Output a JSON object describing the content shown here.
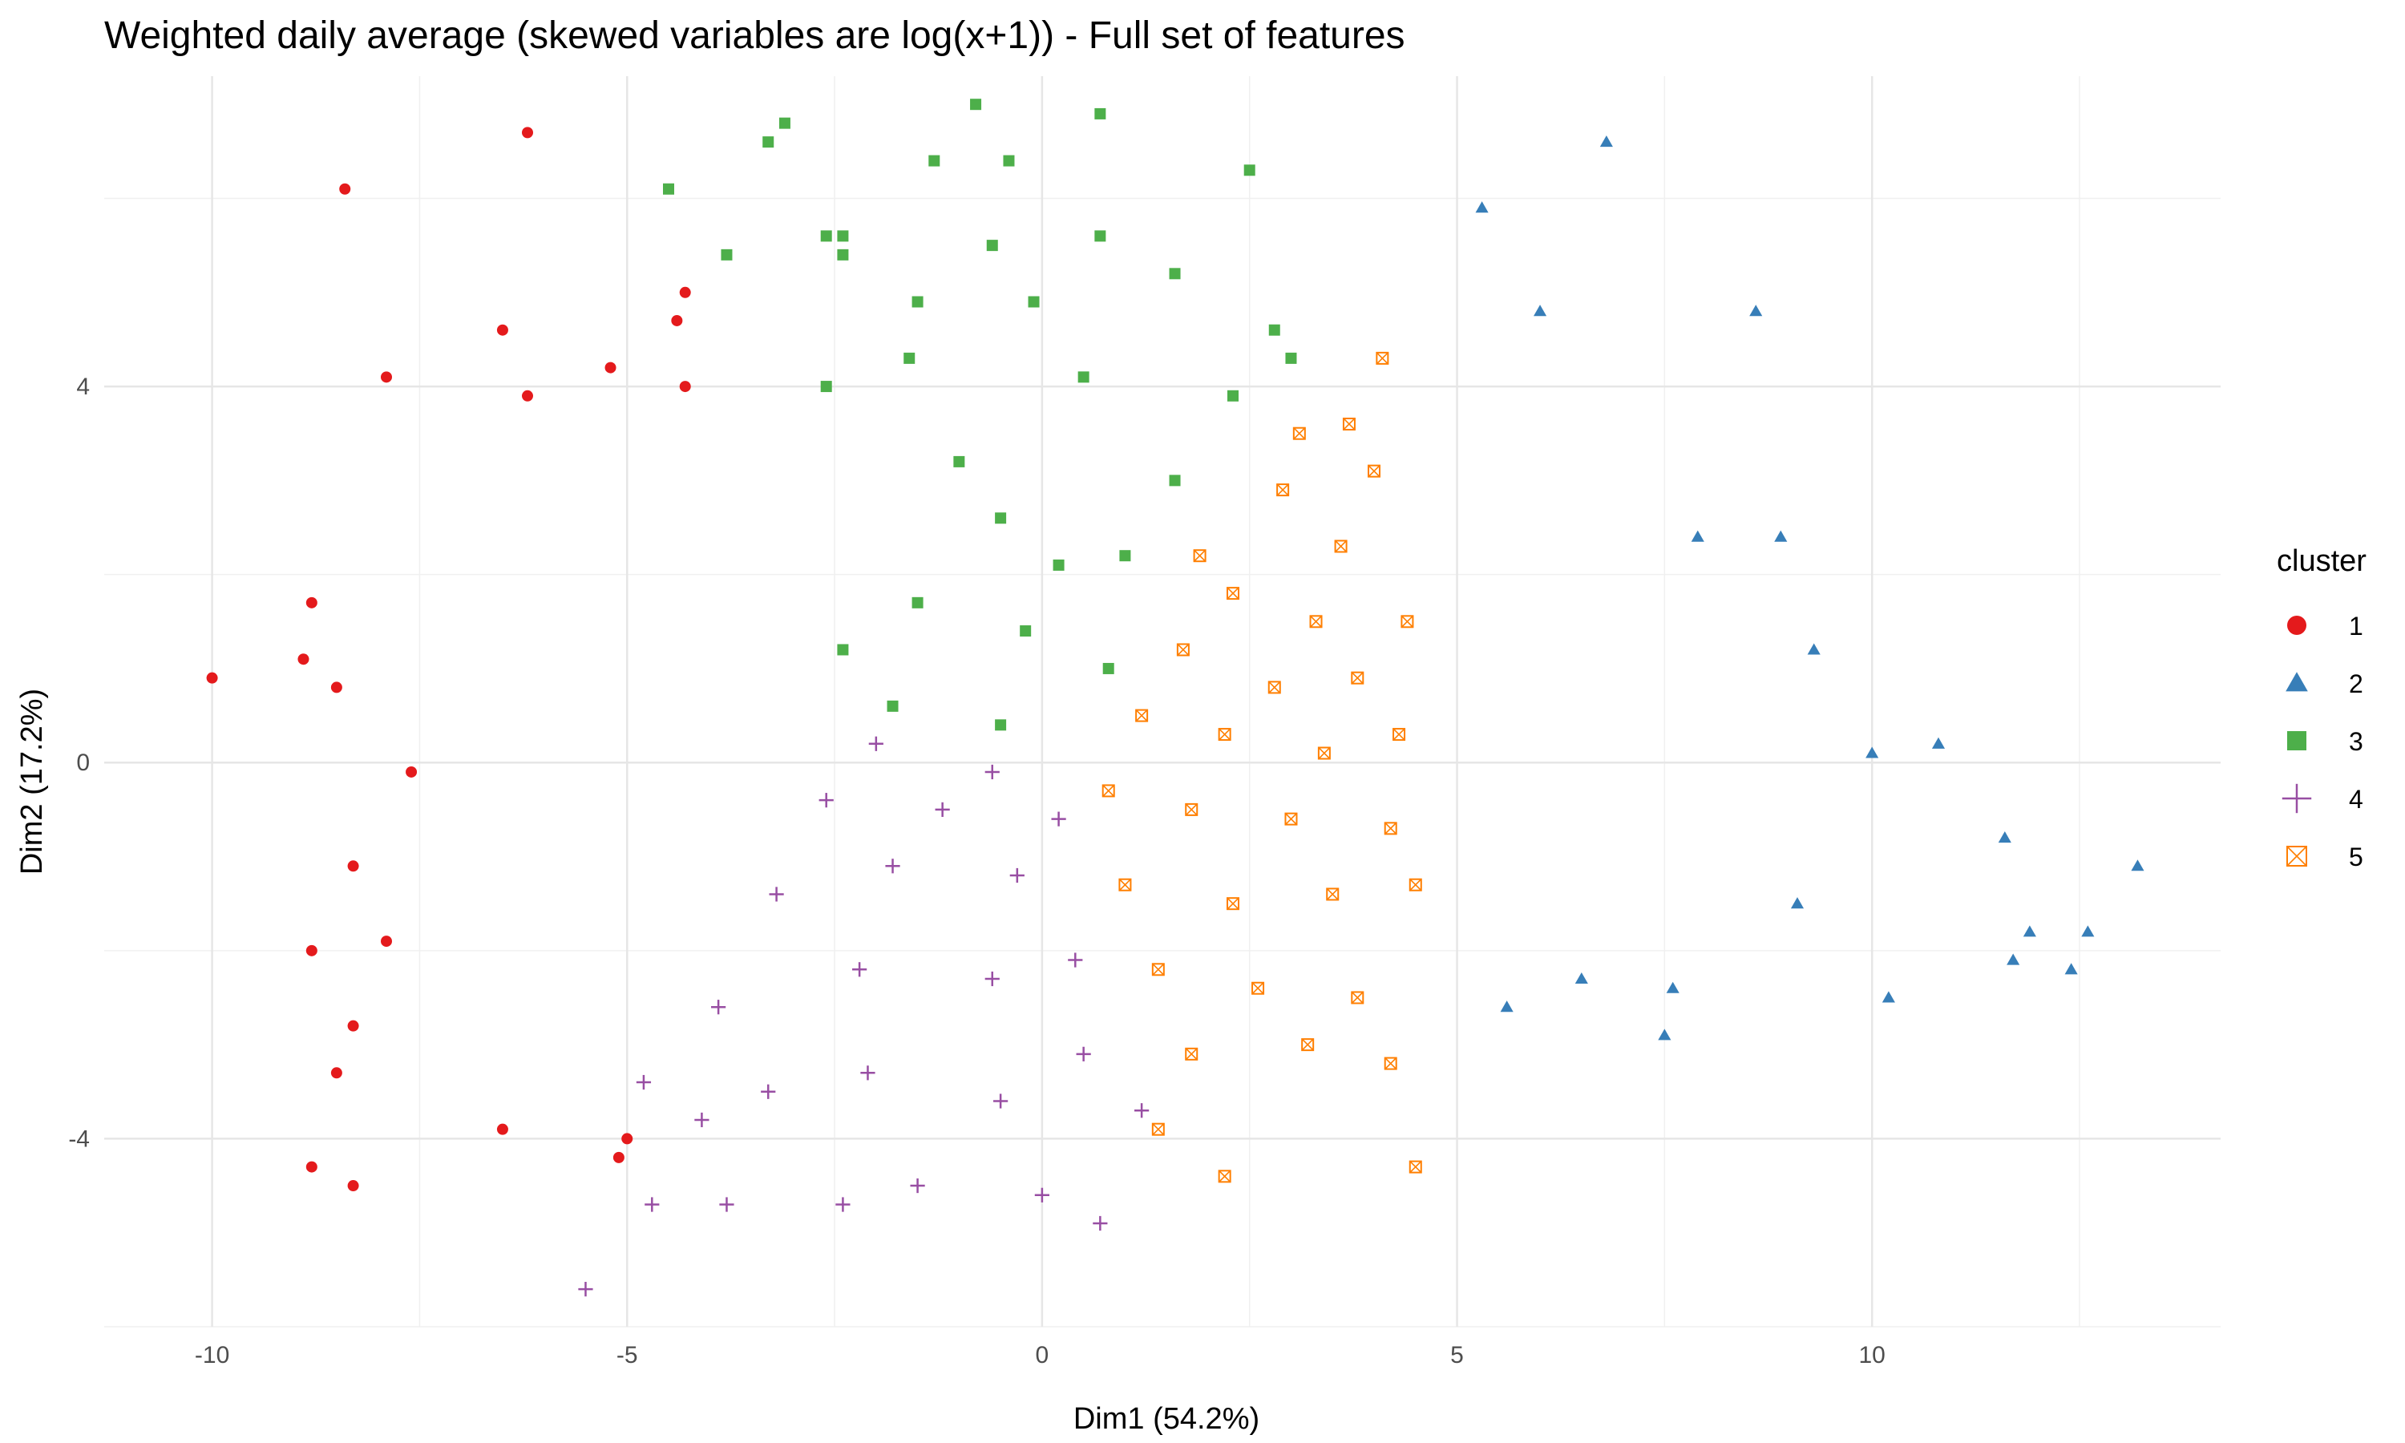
{
  "chart_data": {
    "type": "scatter",
    "title": "Weighted daily average (skewed variables are log(x+1)) - Full set of features",
    "xlabel": "Dim1 (54.2%)",
    "ylabel": "Dim2 (17.2%)",
    "xlim": [
      -11.3,
      14.2
    ],
    "ylim": [
      -6.0,
      7.3
    ],
    "x_ticks": [
      -10,
      -5,
      0,
      5,
      10
    ],
    "x_tick_labels": [
      "-10",
      "-5",
      "0",
      "5",
      "10"
    ],
    "y_ticks": [
      -4,
      0,
      4
    ],
    "y_tick_labels": [
      "-4",
      "0",
      "4"
    ],
    "grid": true,
    "legend": {
      "title": "cluster",
      "placement": "right"
    },
    "colors": {
      "1": "#E41A1C",
      "2": "#377EB8",
      "3": "#4DAF4A",
      "4": "#984EA3",
      "5": "#FF7F00"
    },
    "series": [
      {
        "name": "1",
        "shape": "circle",
        "color": "#E41A1C",
        "points": [
          [
            -10.0,
            0.9
          ],
          [
            -8.4,
            6.1
          ],
          [
            -8.8,
            1.7
          ],
          [
            -8.9,
            1.1
          ],
          [
            -8.5,
            0.8
          ],
          [
            -8.3,
            -1.1
          ],
          [
            -8.8,
            -2.0
          ],
          [
            -8.5,
            -3.3
          ],
          [
            -8.8,
            -4.3
          ],
          [
            -8.3,
            -4.5
          ],
          [
            -7.9,
            4.1
          ],
          [
            -7.6,
            -0.1
          ],
          [
            -7.9,
            -1.9
          ],
          [
            -8.3,
            -2.8
          ],
          [
            -6.2,
            6.7
          ],
          [
            -6.2,
            3.9
          ],
          [
            -6.5,
            4.6
          ],
          [
            -6.5,
            -3.9
          ],
          [
            -5.2,
            4.2
          ],
          [
            -4.4,
            4.7
          ],
          [
            -5.0,
            -4.0
          ],
          [
            -5.1,
            -4.2
          ],
          [
            -4.3,
            4.0
          ],
          [
            -4.3,
            5.0
          ]
        ]
      },
      {
        "name": "2",
        "shape": "triangle",
        "color": "#377EB8",
        "points": [
          [
            6.8,
            6.6
          ],
          [
            5.3,
            5.9
          ],
          [
            6.0,
            4.8
          ],
          [
            8.6,
            4.8
          ],
          [
            7.9,
            2.4
          ],
          [
            8.9,
            2.4
          ],
          [
            9.3,
            1.2
          ],
          [
            10.0,
            0.1
          ],
          [
            10.8,
            0.2
          ],
          [
            11.6,
            -0.8
          ],
          [
            13.2,
            -1.1
          ],
          [
            12.6,
            -1.8
          ],
          [
            12.4,
            -2.2
          ],
          [
            11.9,
            -1.8
          ],
          [
            11.7,
            -2.1
          ],
          [
            10.2,
            -2.5
          ],
          [
            9.1,
            -1.5
          ],
          [
            7.6,
            -2.4
          ],
          [
            7.5,
            -2.9
          ],
          [
            5.6,
            -2.6
          ],
          [
            6.5,
            -2.3
          ]
        ]
      },
      {
        "name": "3",
        "shape": "square",
        "color": "#4DAF4A",
        "points": [
          [
            -0.8,
            7.0
          ],
          [
            0.7,
            6.9
          ],
          [
            -3.1,
            6.8
          ],
          [
            -3.3,
            6.6
          ],
          [
            -4.5,
            6.1
          ],
          [
            -1.3,
            6.4
          ],
          [
            -0.4,
            6.4
          ],
          [
            2.5,
            6.3
          ],
          [
            -3.8,
            5.4
          ],
          [
            -2.6,
            5.6
          ],
          [
            -2.4,
            5.6
          ],
          [
            -2.4,
            5.4
          ],
          [
            -0.6,
            5.5
          ],
          [
            0.7,
            5.6
          ],
          [
            1.6,
            5.2
          ],
          [
            -1.5,
            4.9
          ],
          [
            -0.1,
            4.9
          ],
          [
            2.8,
            4.6
          ],
          [
            3.0,
            4.3
          ],
          [
            -2.6,
            4.0
          ],
          [
            -1.6,
            4.3
          ],
          [
            0.5,
            4.1
          ],
          [
            2.3,
            3.9
          ],
          [
            -1.0,
            3.2
          ],
          [
            1.6,
            3.0
          ],
          [
            -0.5,
            2.6
          ],
          [
            0.2,
            2.1
          ],
          [
            1.0,
            2.2
          ],
          [
            -1.5,
            1.7
          ],
          [
            -0.2,
            1.4
          ],
          [
            0.8,
            1.0
          ],
          [
            -1.8,
            0.6
          ],
          [
            -0.5,
            0.4
          ],
          [
            -2.4,
            1.2
          ]
        ]
      },
      {
        "name": "4",
        "shape": "plus",
        "color": "#984EA3",
        "points": [
          [
            -5.5,
            -5.6
          ],
          [
            -4.7,
            -4.7
          ],
          [
            -3.8,
            -4.7
          ],
          [
            -2.4,
            -4.7
          ],
          [
            -1.5,
            -4.5
          ],
          [
            0.0,
            -4.6
          ],
          [
            0.7,
            -4.9
          ],
          [
            -4.1,
            -3.8
          ],
          [
            -4.8,
            -3.4
          ],
          [
            -3.3,
            -3.5
          ],
          [
            -2.1,
            -3.3
          ],
          [
            -0.5,
            -3.6
          ],
          [
            0.5,
            -3.1
          ],
          [
            1.2,
            -3.7
          ],
          [
            -3.9,
            -2.6
          ],
          [
            -2.2,
            -2.2
          ],
          [
            -0.6,
            -2.3
          ],
          [
            0.4,
            -2.1
          ],
          [
            -3.2,
            -1.4
          ],
          [
            -1.8,
            -1.1
          ],
          [
            -0.3,
            -1.2
          ],
          [
            -2.6,
            -0.4
          ],
          [
            -1.2,
            -0.5
          ],
          [
            0.2,
            -0.6
          ],
          [
            -2.0,
            0.2
          ],
          [
            -0.6,
            -0.1
          ]
        ]
      },
      {
        "name": "5",
        "shape": "boxx",
        "color": "#FF7F00",
        "points": [
          [
            4.1,
            4.3
          ],
          [
            3.1,
            3.5
          ],
          [
            3.7,
            3.6
          ],
          [
            4.0,
            3.1
          ],
          [
            2.9,
            2.9
          ],
          [
            1.9,
            2.2
          ],
          [
            3.6,
            2.3
          ],
          [
            2.3,
            1.8
          ],
          [
            3.3,
            1.5
          ],
          [
            4.4,
            1.5
          ],
          [
            1.7,
            1.2
          ],
          [
            2.8,
            0.8
          ],
          [
            3.8,
            0.9
          ],
          [
            1.2,
            0.5
          ],
          [
            2.2,
            0.3
          ],
          [
            3.4,
            0.1
          ],
          [
            4.3,
            0.3
          ],
          [
            0.8,
            -0.3
          ],
          [
            1.8,
            -0.5
          ],
          [
            3.0,
            -0.6
          ],
          [
            4.2,
            -0.7
          ],
          [
            1.0,
            -1.3
          ],
          [
            2.3,
            -1.5
          ],
          [
            3.5,
            -1.4
          ],
          [
            4.5,
            -1.3
          ],
          [
            1.4,
            -2.2
          ],
          [
            2.6,
            -2.4
          ],
          [
            3.8,
            -2.5
          ],
          [
            1.8,
            -3.1
          ],
          [
            3.2,
            -3.0
          ],
          [
            4.2,
            -3.2
          ],
          [
            1.4,
            -3.9
          ],
          [
            2.2,
            -4.4
          ],
          [
            4.5,
            -4.3
          ]
        ]
      }
    ]
  }
}
